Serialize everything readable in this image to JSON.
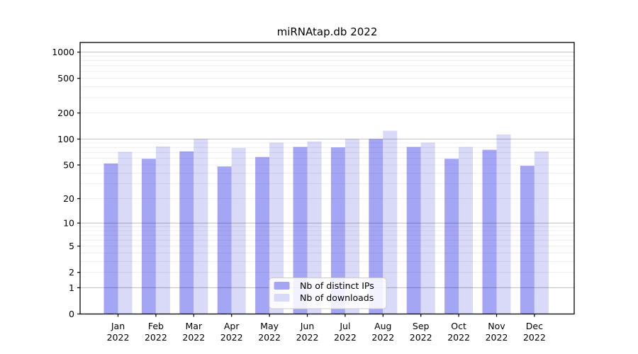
{
  "figure": {
    "title": "miRNAtap.db 2022",
    "background": "#ffffff"
  },
  "chart_data": {
    "type": "bar",
    "title": "miRNAtap.db 2022",
    "categories": [
      "Jan 2022",
      "Feb 2022",
      "Mar 2022",
      "Apr 2022",
      "May 2022",
      "Jun 2022",
      "Jul 2022",
      "Aug 2022",
      "Sep 2022",
      "Oct 2022",
      "Nov 2022",
      "Dec 2022"
    ],
    "series": [
      {
        "name": "Nb of distinct IPs",
        "color": "#a5a5f5",
        "values": [
          52,
          59,
          72,
          48,
          62,
          81,
          80,
          100,
          81,
          59,
          75,
          49
        ]
      },
      {
        "name": "Nb of downloads",
        "color": "#d9d9f8",
        "values": [
          71,
          82,
          100,
          79,
          91,
          94,
          100,
          125,
          91,
          81,
          113,
          72
        ]
      }
    ],
    "y_axis": {
      "scale": "log10(value+1)",
      "ticks": [
        0,
        1,
        2,
        5,
        10,
        20,
        50,
        100,
        200,
        500,
        1000
      ],
      "tick_labels": [
        "0",
        "1",
        "2",
        "5",
        "10",
        "20",
        "50",
        "100",
        "200",
        "500",
        "1000"
      ],
      "major_grid_values": [
        1,
        10,
        100,
        1000
      ],
      "grid": "on"
    },
    "x_axis": {
      "tick_label_year": "2022"
    },
    "legend": {
      "position": "lower-center",
      "entries": [
        "Nb of distinct IPs",
        "Nb of downloads"
      ]
    },
    "colors": {
      "ips_bar": "#a5a5f5",
      "downloads_bar": "#d9d9f8",
      "major_grid": "rgba(0,0,0,0.25)",
      "minor_grid": "rgba(0,0,0,0.08)",
      "spine": "#000000",
      "legend_border": "#cccccc"
    }
  }
}
